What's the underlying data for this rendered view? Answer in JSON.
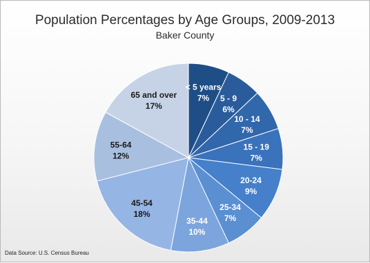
{
  "chart_data": {
    "type": "pie",
    "title": "Population Percentages by Age Groups, 2009-2013",
    "subtitle": "Baker County",
    "source": "Data Source:  U.S. Census Bureau",
    "categories": [
      "< 5 years",
      "5 - 9",
      "10 - 14",
      "15 - 19",
      "20-24",
      "25-34",
      "35-44",
      "45-54",
      "55-64",
      "65 and over"
    ],
    "values": [
      7,
      6,
      7,
      7,
      9,
      7,
      10,
      18,
      12,
      17
    ],
    "value_labels": [
      "7%",
      "6%",
      "7%",
      "7%",
      "9%",
      "7%",
      "10%",
      "18%",
      "12%",
      "17%"
    ],
    "colors": [
      "#1f4e87",
      "#2a5c9b",
      "#3167ab",
      "#3a72bb",
      "#4680cb",
      "#5a8fd2",
      "#7ca5dd",
      "#95b5e4",
      "#a9bfe0",
      "#c6d3e6"
    ],
    "label_colors": [
      "#ffffff",
      "#ffffff",
      "#ffffff",
      "#ffffff",
      "#ffffff",
      "#ffffff",
      "#ffffff",
      "#1a1a1a",
      "#1a1a1a",
      "#1a1a1a"
    ]
  }
}
